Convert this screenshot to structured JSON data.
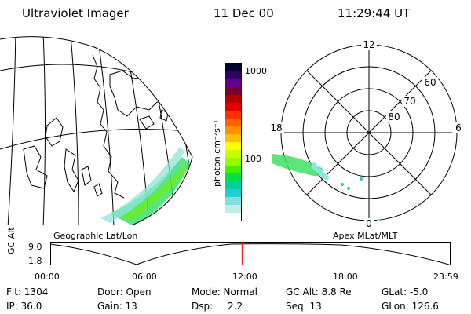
{
  "header": {
    "instrument": "Ultraviolet Imager",
    "date": "11 Dec 00",
    "time": "11:29:44 UT"
  },
  "colorbar": {
    "label": "photon cm⁻²s⁻¹",
    "tick_labels": [
      "1000",
      "100"
    ],
    "colors": [
      "#000030",
      "#300060",
      "#600090",
      "#7a0030",
      "#b00000",
      "#e00000",
      "#ff3000",
      "#ff6000",
      "#ff9000",
      "#ffc000",
      "#ffff00",
      "#c8ff00",
      "#90ff00",
      "#40f000",
      "#00e040",
      "#00d0a0",
      "#20d0d0",
      "#80e0e0",
      "#c0ecec",
      "#ffffff"
    ]
  },
  "left_panel": {
    "caption": "Geographic Lat/Lon"
  },
  "right_panel": {
    "caption": "Apex MLat/MLT",
    "mlt_labels": {
      "top": "12",
      "left": "18",
      "right": "6",
      "bottom": "0"
    },
    "lat_labels": [
      "60",
      "70",
      "80"
    ]
  },
  "orbit": {
    "ylabel": "GC Alt",
    "y_ticks": [
      "9.0",
      "1.8"
    ],
    "x_ticks": [
      "00:00",
      "06:00",
      "12:00",
      "18:00",
      "23:59"
    ],
    "marker_hour": 11.5
  },
  "info": {
    "flt": "Flt: 1304",
    "ip": "IP: 36.0",
    "door": "Door: Open",
    "gain": "Gain: 13",
    "mode": "Mode: Normal",
    "dsp_label": "Dsp:",
    "dsp_value": "2.2",
    "gc_alt": "GC Alt: 8.8 Re",
    "seq": "Seq: 13",
    "glat": "GLat: -5.0",
    "glon": "GLon: 126.6"
  }
}
